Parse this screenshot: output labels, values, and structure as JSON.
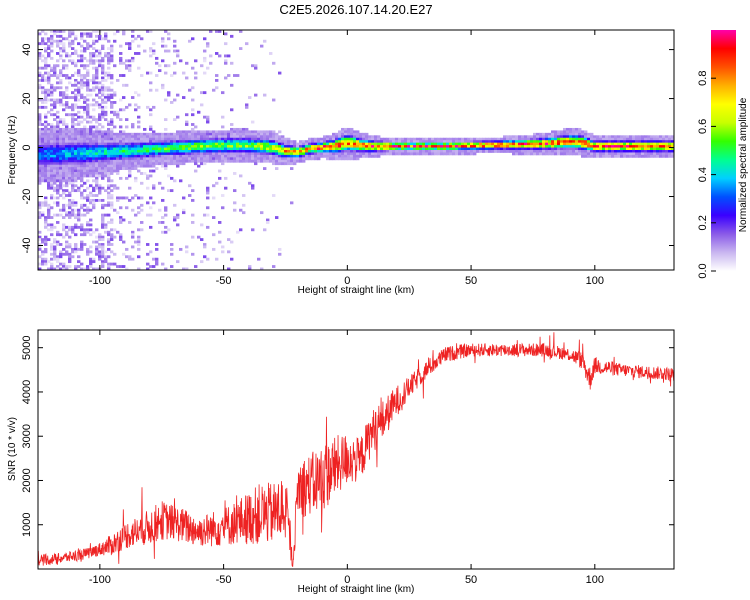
{
  "title": "C2E5.2026.107.14.20.E27",
  "colors": {
    "snr_line": "#ee2222",
    "frame": "#000000",
    "colormap": [
      "#ffffff",
      "#c9b6f0",
      "#8a5ae8",
      "#3a00ff",
      "#0050ff",
      "#00d0ff",
      "#00ff90",
      "#33ff00",
      "#c8ff00",
      "#ffff00",
      "#ffb000",
      "#ff5000",
      "#ff0000",
      "#ff00aa"
    ]
  },
  "chart_data": [
    {
      "type": "heatmap",
      "name": "spectrogram",
      "xlabel": "Height of straight line (km)",
      "ylabel": "Frequency (Hz)",
      "xlim": [
        -125,
        132
      ],
      "ylim": [
        -50,
        48
      ],
      "xticks": [
        -100,
        -50,
        0,
        50,
        100
      ],
      "xtick_labels": [
        "-100",
        "-50",
        "0",
        "50",
        "100"
      ],
      "yticks": [
        -40,
        -20,
        0,
        20,
        40
      ],
      "ytick_labels": [
        "-40",
        "-20",
        "0",
        "20",
        "40"
      ],
      "ridge": {
        "x": [
          -125,
          -110,
          -100,
          -90,
          -75,
          -60,
          -45,
          -35,
          -30,
          -25,
          -20,
          -15,
          -10,
          -5,
          0,
          5,
          10,
          20,
          40,
          60,
          80,
          90,
          95,
          100,
          110,
          120,
          132
        ],
        "freq": [
          -3,
          -2.5,
          -2,
          -1.5,
          -0.5,
          0.5,
          1,
          0.5,
          0,
          -1.5,
          -2,
          -0.5,
          0,
          0.5,
          2,
          1,
          0.5,
          0.5,
          0.5,
          1,
          1.5,
          2.5,
          2,
          0.5,
          0.5,
          0.5,
          0.5
        ],
        "halfwidth": [
          5,
          5,
          4,
          3.5,
          3,
          3,
          3,
          3,
          3,
          2.5,
          2,
          2,
          2,
          2.5,
          3,
          2.5,
          2,
          1.5,
          1.5,
          1.5,
          2,
          2.5,
          2.5,
          2,
          2,
          2,
          2
        ],
        "peak_amplitude": [
          0.35,
          0.4,
          0.45,
          0.5,
          0.55,
          0.6,
          0.6,
          0.65,
          0.7,
          0.8,
          0.9,
          0.85,
          0.95,
          0.95,
          0.9,
          0.95,
          0.95,
          0.95,
          0.95,
          0.95,
          0.95,
          0.95,
          0.95,
          0.95,
          0.95,
          0.95,
          0.95
        ]
      },
      "colorbar": {
        "label": "Normalized spectral amplitude",
        "range": [
          0,
          1
        ],
        "ticks": [
          0.0,
          0.2,
          0.4,
          0.6,
          0.8
        ],
        "tick_labels": [
          "0.0",
          "0.2",
          "0.4",
          "0.6",
          "0.8"
        ]
      }
    },
    {
      "type": "line",
      "name": "snr",
      "xlabel": "Height of straight line (km)",
      "ylabel": "SNR (10 * v/v)",
      "xlim": [
        -125,
        132
      ],
      "ylim": [
        0,
        5400
      ],
      "xticks": [
        -100,
        -50,
        0,
        50,
        100
      ],
      "xtick_labels": [
        "-100",
        "-50",
        "0",
        "50",
        "100"
      ],
      "yticks": [
        1000,
        2000,
        3000,
        4000,
        5000
      ],
      "ytick_labels": [
        "1000",
        "2000",
        "3000",
        "4000",
        "5000"
      ],
      "series": [
        {
          "name": "SNR",
          "x": [
            -125,
            -115,
            -105,
            -100,
            -95,
            -90,
            -85,
            -80,
            -75,
            -70,
            -65,
            -60,
            -55,
            -50,
            -45,
            -40,
            -35,
            -30,
            -25,
            -22,
            -20,
            -15,
            -10,
            -5,
            0,
            5,
            10,
            15,
            20,
            25,
            30,
            35,
            40,
            50,
            60,
            70,
            80,
            90,
            95,
            98,
            100,
            110,
            120,
            132
          ],
          "y": [
            180,
            250,
            350,
            450,
            550,
            750,
            850,
            950,
            1100,
            1050,
            950,
            850,
            900,
            950,
            1050,
            1150,
            1250,
            1250,
            1400,
            100,
            1850,
            1900,
            2050,
            2300,
            2500,
            2450,
            3100,
            3400,
            3800,
            4100,
            4400,
            4650,
            4850,
            4950,
            4950,
            4950,
            4950,
            4850,
            4700,
            4300,
            4600,
            4500,
            4450,
            4400
          ],
          "noise": [
            120,
            120,
            130,
            150,
            250,
            300,
            350,
            400,
            450,
            400,
            400,
            350,
            400,
            450,
            500,
            600,
            700,
            700,
            800,
            100,
            700,
            700,
            800,
            700,
            600,
            500,
            500,
            450,
            350,
            250,
            220,
            200,
            180,
            150,
            150,
            150,
            150,
            150,
            200,
            300,
            200,
            150,
            150,
            150
          ]
        }
      ]
    }
  ]
}
